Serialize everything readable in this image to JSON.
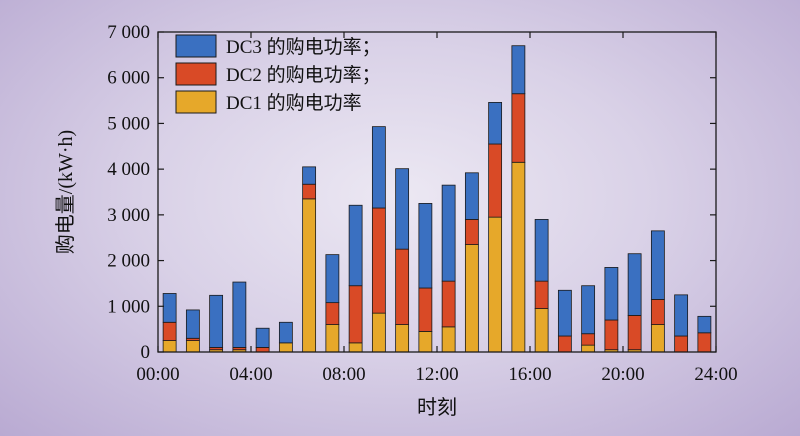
{
  "chart_data": {
    "type": "bar",
    "stacked": true,
    "xlabel": "时刻",
    "ylabel": "购电量/(kW·h)",
    "ylim": [
      0,
      7000
    ],
    "yticks": [
      0,
      1000,
      2000,
      3000,
      4000,
      5000,
      6000,
      7000
    ],
    "ytick_labels": [
      "0",
      "1 000",
      "2 000",
      "3 000",
      "4 000",
      "5 000",
      "6 000",
      "7 000"
    ],
    "xlim": [
      0,
      24
    ],
    "xticks": [
      0,
      4,
      8,
      12,
      16,
      20,
      24
    ],
    "xtick_labels": [
      "00:00",
      "04:00",
      "08:00",
      "12:00",
      "16:00",
      "20:00",
      "24:00"
    ],
    "x": [
      1,
      2,
      3,
      4,
      5,
      6,
      7,
      8,
      9,
      10,
      11,
      12,
      13,
      14,
      15,
      16,
      17,
      18,
      19,
      20,
      21,
      22,
      23,
      24
    ],
    "series": [
      {
        "name": "DC1 的购电功率",
        "color": "#e6a82a",
        "values": [
          250,
          250,
          50,
          50,
          0,
          200,
          3350,
          600,
          200,
          850,
          600,
          450,
          550,
          2350,
          2950,
          4150,
          950,
          0,
          150,
          50,
          50,
          600,
          0,
          0
        ]
      },
      {
        "name": "DC2 的购电功率",
        "color": "#d94a26",
        "values": [
          400,
          50,
          50,
          50,
          100,
          0,
          320,
          480,
          1250,
          2300,
          1650,
          950,
          1000,
          550,
          1600,
          1500,
          600,
          350,
          250,
          650,
          750,
          550,
          350,
          420
        ]
      },
      {
        "name": "DC3 的购电功率",
        "color": "#3a70c1",
        "values": [
          630,
          620,
          1140,
          1430,
          420,
          450,
          380,
          1050,
          1760,
          1780,
          1760,
          1850,
          2100,
          1020,
          910,
          1050,
          1350,
          1000,
          1050,
          1150,
          1350,
          1500,
          900,
          360
        ]
      }
    ],
    "legend": {
      "position": "top-left",
      "entries": [
        "DC3 的购电功率；",
        "DC2 的购电功率；",
        "DC1 的购电功率"
      ]
    }
  }
}
